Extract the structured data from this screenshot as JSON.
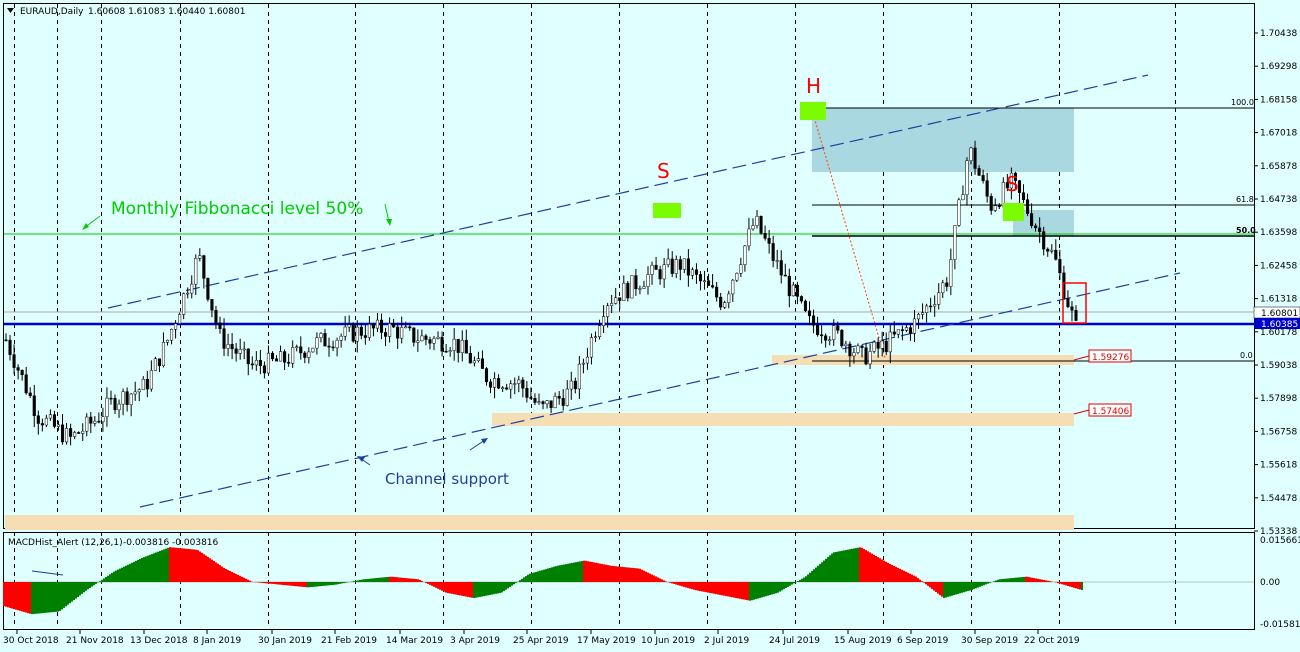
{
  "header": {
    "symbol": "EURAUD,Daily",
    "ohlc": "1.60608 1.61083 1.60440 1.60801"
  },
  "price_axis": [
    "1.70438",
    "1.69298",
    "1.68158",
    "1.67018",
    "1.65878",
    "1.64738",
    "1.63598",
    "1.62458",
    "1.61318",
    "1.60178",
    "1.59038",
    "1.57898",
    "1.56758",
    "1.55618",
    "1.54478",
    "1.53338"
  ],
  "price_badges": {
    "current": "1.60801",
    "line": "1.60385"
  },
  "level_labels": [
    "1.59276",
    "1.57406"
  ],
  "fib_labels": [
    "100.0",
    "61.8",
    "50.0",
    "0.0"
  ],
  "macd": {
    "title": "MACDHist_Alert (12,26,1)",
    "values": "-0.003816 -0.003816",
    "axis": [
      "0.015661",
      "0.00",
      "-0.015811"
    ]
  },
  "date_axis": [
    "30 Oct 2018",
    "21 Nov 2018",
    "13 Dec 2018",
    "8 Jan 2019",
    "30 Jan 2019",
    "21 Feb 2019",
    "14 Mar 2019",
    "3 Apr 2019",
    "25 Apr 2019",
    "17 May 2019",
    "10 Jun 2019",
    "2 Jul 2019",
    "24 Jul 2019",
    "15 Aug 2019",
    "6 Sep 2019",
    "30 Sep 2019",
    "22 Oct 2019"
  ],
  "annotations": {
    "fib_text": "Monthly Fibbonacci level 50%",
    "channel_text": "Channel support",
    "head": "H",
    "shoulder_left": "S",
    "shoulder_right": "S"
  },
  "colors": {
    "background": "#e0ffff",
    "bull": "#008000",
    "bear": "#ff0000",
    "channel": "#1e3fa0",
    "blue_line": "#0000cd",
    "fib_line": "#00cc00",
    "zone_blue": "#a9d8e0",
    "zone_tan": "#f5deb3",
    "marker_green": "#7cfc00"
  },
  "chart_data": {
    "type": "candlestick",
    "close_path_x": [
      0.0,
      0.03,
      0.06,
      0.085,
      0.1,
      0.13,
      0.15,
      0.18,
      0.2,
      0.23,
      0.26,
      0.29,
      0.33,
      0.36,
      0.38,
      0.42,
      0.45,
      0.48,
      0.5,
      0.53,
      0.56,
      0.6,
      0.63,
      0.67,
      0.7,
      0.72,
      0.75,
      0.78,
      0.8,
      0.82,
      0.85,
      0.88,
      0.9,
      0.92,
      0.94,
      0.96,
      0.98,
      1.0
    ],
    "close_path_y": [
      1.599,
      1.573,
      1.565,
      1.572,
      1.578,
      1.583,
      1.598,
      1.628,
      1.6,
      1.59,
      1.592,
      1.598,
      1.602,
      1.603,
      1.6,
      1.598,
      1.586,
      1.584,
      1.575,
      1.582,
      1.612,
      1.621,
      1.625,
      1.612,
      1.64,
      1.625,
      1.605,
      1.6,
      1.593,
      1.597,
      1.605,
      1.62,
      1.665,
      1.645,
      1.653,
      1.64,
      1.627,
      1.603
    ],
    "macd_path": [
      -0.009,
      -0.012,
      -0.011,
      -0.003,
      0.004,
      0.009,
      0.013,
      0.012,
      0.005,
      0.0,
      -0.001,
      -0.002,
      -0.001,
      0.001,
      0.002,
      0.001,
      -0.004,
      -0.006,
      -0.004,
      0.003,
      0.006,
      0.008,
      0.006,
      0.005,
      0.0,
      -0.003,
      -0.005,
      -0.007,
      -0.004,
      0.002,
      0.011,
      0.013,
      0.007,
      0.002,
      -0.006,
      -0.003,
      0.001,
      0.002,
      0.0,
      -0.003
    ]
  }
}
